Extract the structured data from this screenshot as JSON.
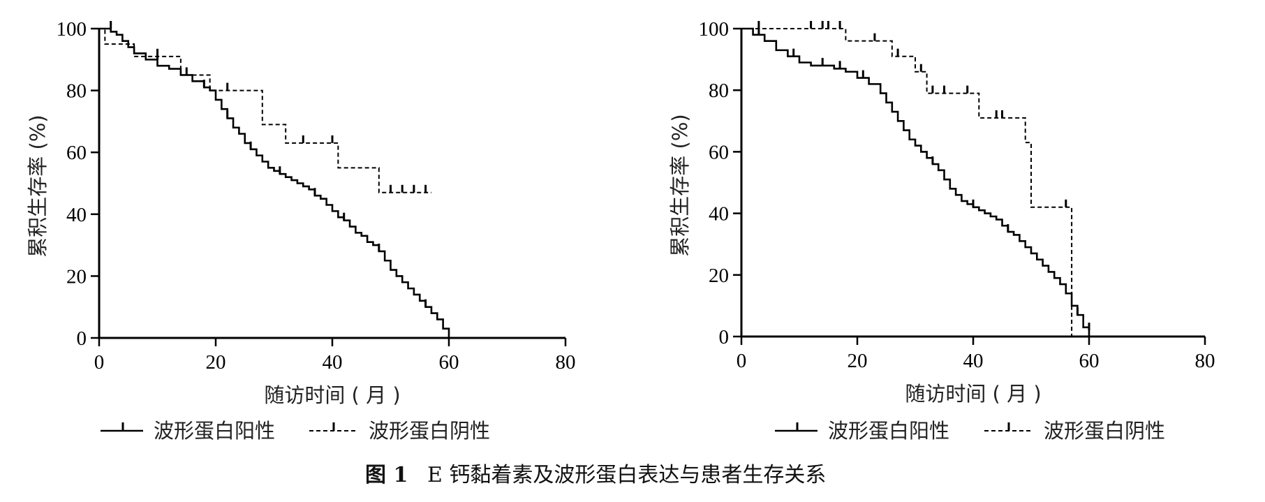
{
  "caption": {
    "figure_number": "图 1",
    "text": "E 钙黏着素及波形蛋白表达与患者生存关系"
  },
  "legend": {
    "positive": "波形蛋白阳性",
    "negative": "波形蛋白阴性"
  },
  "chart_data": [
    {
      "type": "line",
      "subtype": "kaplan-meier",
      "xlabel": "随访时间 ( 月 )",
      "ylabel": "累积生存率 (%)",
      "xlim": [
        0,
        80
      ],
      "ylim": [
        0,
        100
      ],
      "xticks": [
        0,
        20,
        40,
        60,
        80
      ],
      "yticks": [
        0,
        20,
        40,
        60,
        80,
        100
      ],
      "grid": false,
      "series": [
        {
          "name": "波形蛋白阳性",
          "style": "solid",
          "x": [
            0,
            1,
            2,
            3,
            4,
            5,
            6,
            8,
            10,
            12,
            14,
            16,
            18,
            19,
            20,
            21,
            22,
            23,
            24,
            25,
            26,
            27,
            28,
            29,
            30,
            31,
            32,
            33,
            34,
            35,
            36,
            37,
            38,
            39,
            40,
            41,
            42,
            43,
            44,
            45,
            46,
            47,
            48,
            49,
            50,
            51,
            52,
            53,
            54,
            55,
            56,
            57,
            58,
            59,
            60
          ],
          "y": [
            100,
            100,
            99,
            98,
            96,
            94,
            92,
            90,
            88,
            87,
            85,
            83,
            81,
            80,
            77,
            74,
            71,
            68,
            66,
            63,
            61,
            59,
            57,
            55,
            54,
            53,
            52,
            51,
            50,
            49,
            48,
            46,
            45,
            43,
            41,
            39,
            38,
            36,
            34,
            33,
            31,
            30,
            28,
            25,
            22,
            20,
            18,
            16,
            14,
            12,
            10,
            8,
            6,
            3,
            0
          ],
          "censored": [
            [
              2,
              100
            ],
            [
              10,
              90
            ],
            [
              18,
              81
            ],
            [
              22,
              71
            ],
            [
              26,
              61
            ],
            [
              31,
              53
            ],
            [
              37,
              46
            ],
            [
              42,
              38
            ],
            [
              48,
              28
            ],
            [
              56,
              10
            ]
          ]
        },
        {
          "name": "波形蛋白阴性",
          "style": "dashed",
          "x": [
            0,
            1,
            6,
            14,
            19,
            28,
            32,
            41,
            48,
            57
          ],
          "y": [
            100,
            95,
            91,
            85,
            80,
            69,
            63,
            55,
            47,
            47
          ],
          "censored": [
            [
              10,
              91
            ],
            [
              15,
              85
            ],
            [
              22,
              80
            ],
            [
              35,
              63
            ],
            [
              40,
              63
            ],
            [
              50,
              47
            ],
            [
              52,
              47
            ],
            [
              54,
              47
            ],
            [
              56,
              47
            ]
          ]
        }
      ]
    },
    {
      "type": "line",
      "subtype": "kaplan-meier",
      "xlabel": "随访时间 ( 月 )",
      "ylabel": "累积生存率 (%)",
      "xlim": [
        0,
        80
      ],
      "ylim": [
        0,
        100
      ],
      "xticks": [
        0,
        20,
        40,
        60,
        80
      ],
      "yticks": [
        0,
        20,
        40,
        60,
        80,
        100
      ],
      "grid": false,
      "series": [
        {
          "name": "波形蛋白阳性",
          "style": "solid",
          "x": [
            0,
            2,
            4,
            6,
            8,
            10,
            12,
            16,
            18,
            20,
            22,
            24,
            25,
            26,
            27,
            28,
            29,
            30,
            31,
            32,
            33,
            34,
            35,
            36,
            37,
            38,
            39,
            40,
            41,
            42,
            43,
            44,
            45,
            46,
            47,
            48,
            49,
            50,
            51,
            52,
            53,
            54,
            55,
            56,
            57,
            58,
            59,
            60
          ],
          "y": [
            100,
            98,
            96,
            93,
            91,
            89,
            88,
            87,
            86,
            84,
            82,
            79,
            76,
            73,
            70,
            67,
            64,
            62,
            60,
            58,
            56,
            54,
            51,
            48,
            46,
            44,
            43,
            42,
            41,
            40,
            39,
            38,
            36,
            34,
            33,
            31,
            29,
            27,
            25,
            23,
            21,
            19,
            17,
            14,
            10,
            7,
            3,
            0
          ],
          "censored": [
            [
              3,
              98
            ],
            [
              9,
              91
            ],
            [
              14,
              88
            ],
            [
              17,
              87
            ],
            [
              21,
              84
            ],
            [
              33,
              56
            ],
            [
              40,
              42
            ],
            [
              46,
              34
            ],
            [
              58,
              7
            ],
            [
              60,
              2
            ]
          ]
        },
        {
          "name": "波形蛋白阴性",
          "style": "dashed",
          "x": [
            0,
            18,
            26,
            30,
            32,
            41,
            49,
            50,
            56,
            57
          ],
          "y": [
            100,
            96,
            91,
            86,
            79,
            71,
            63,
            42,
            42,
            0
          ],
          "censored": [
            [
              3,
              100
            ],
            [
              12,
              100
            ],
            [
              14,
              100
            ],
            [
              15,
              100
            ],
            [
              17,
              100
            ],
            [
              23,
              96
            ],
            [
              27,
              91
            ],
            [
              31,
              86
            ],
            [
              33,
              79
            ],
            [
              35,
              79
            ],
            [
              39,
              79
            ],
            [
              44,
              71
            ],
            [
              45,
              71
            ],
            [
              56,
              42
            ]
          ]
        }
      ]
    }
  ]
}
